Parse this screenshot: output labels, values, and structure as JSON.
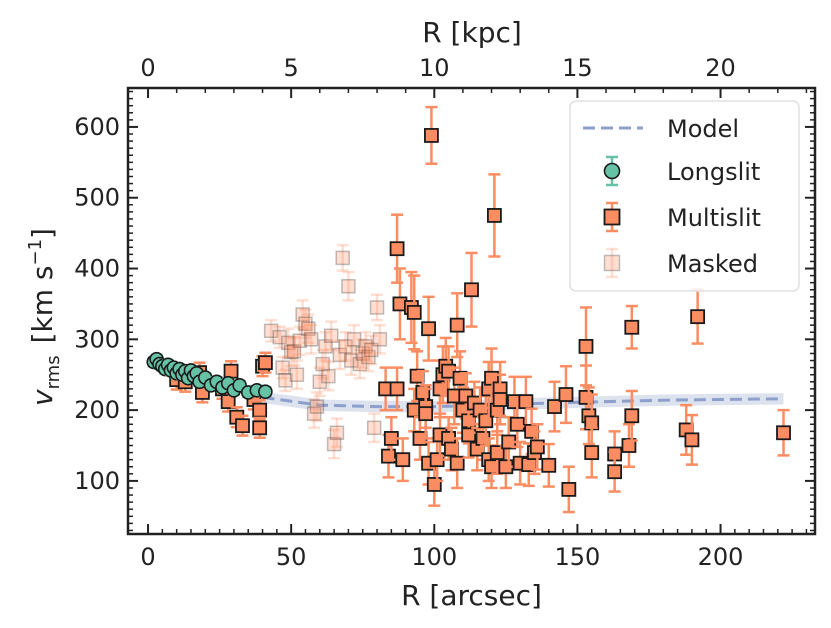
{
  "chart_data": {
    "type": "scatter",
    "xlabel": "R  [arcsec]",
    "x2label": "R  [kpc]",
    "ylabel_main": "v",
    "ylabel_sub": "rms",
    "ylabel_units": "[km s",
    "ylabel_exp": "−1",
    "ylabel_close": "]",
    "xlim": [
      -7,
      233
    ],
    "ylim": [
      25,
      655
    ],
    "x2_per_x": 0.1,
    "xticks": [
      0,
      50,
      100,
      150,
      200
    ],
    "xtick_labels": [
      "0",
      "50",
      "100",
      "150",
      "200"
    ],
    "yticks": [
      100,
      200,
      300,
      400,
      500,
      600
    ],
    "ytick_labels": [
      "100",
      "200",
      "300",
      "400",
      "500",
      "600"
    ],
    "x2ticks": [
      0,
      5,
      10,
      15,
      20
    ],
    "x2tick_labels": [
      "0",
      "5",
      "10",
      "15",
      "20"
    ],
    "colors": {
      "model": "#8da0cb",
      "longslit": "#66c2a5",
      "multislit": "#fc8d62",
      "masked": "#f4c7b4"
    },
    "legend": {
      "placement": "top-right",
      "entries": [
        {
          "label": "Model",
          "marker": "dashed-line"
        },
        {
          "label": "Longslit",
          "marker": "circle"
        },
        {
          "label": "Multislit",
          "marker": "square"
        },
        {
          "label": "Masked",
          "marker": "faded-square"
        }
      ]
    },
    "series": [
      {
        "name": "Model",
        "style": "dashed",
        "x": [
          40,
          60,
          80,
          100,
          120,
          140,
          160,
          180,
          200,
          222
        ],
        "y": [
          218,
          207,
          205,
          205,
          207,
          210,
          212,
          214,
          215,
          216
        ],
        "band": 8
      },
      {
        "name": "Longslit",
        "marker": "circle",
        "points": [
          [
            2,
            268,
            6
          ],
          [
            3,
            272,
            6
          ],
          [
            4,
            265,
            6
          ],
          [
            5,
            262,
            6
          ],
          [
            6,
            258,
            6
          ],
          [
            7,
            264,
            6
          ],
          [
            8,
            256,
            6
          ],
          [
            9,
            260,
            6
          ],
          [
            10,
            252,
            6
          ],
          [
            11,
            258,
            6
          ],
          [
            12,
            250,
            6
          ],
          [
            13,
            255,
            6
          ],
          [
            14,
            245,
            6
          ],
          [
            15,
            256,
            6
          ],
          [
            16,
            248,
            6
          ],
          [
            17,
            252,
            6
          ],
          [
            18,
            240,
            6
          ],
          [
            20,
            246,
            6
          ],
          [
            22,
            235,
            6
          ],
          [
            24,
            240,
            6
          ],
          [
            26,
            232,
            6
          ],
          [
            28,
            238,
            6
          ],
          [
            30,
            228,
            6
          ],
          [
            32,
            235,
            6
          ],
          [
            35,
            225,
            6
          ],
          [
            38,
            228,
            6
          ],
          [
            41,
            226,
            6
          ]
        ]
      },
      {
        "name": "Multislit",
        "marker": "square",
        "points": [
          [
            10,
            243,
            14
          ],
          [
            13,
            240,
            14
          ],
          [
            18,
            253,
            14
          ],
          [
            19,
            225,
            14
          ],
          [
            26,
            230,
            14
          ],
          [
            28,
            212,
            14
          ],
          [
            29,
            255,
            14
          ],
          [
            31,
            190,
            14
          ],
          [
            33,
            178,
            14
          ],
          [
            37,
            215,
            14
          ],
          [
            39,
            200,
            14
          ],
          [
            39,
            175,
            14
          ],
          [
            40,
            262,
            14
          ],
          [
            41,
            267,
            14
          ],
          [
            83,
            230,
            30
          ],
          [
            84,
            135,
            30
          ],
          [
            85,
            160,
            30
          ],
          [
            87,
            428,
            48
          ],
          [
            87,
            230,
            30
          ],
          [
            88,
            350,
            50
          ],
          [
            89,
            130,
            30
          ],
          [
            92,
            345,
            50
          ],
          [
            93,
            338,
            52
          ],
          [
            93,
            200,
            30
          ],
          [
            94,
            248,
            35
          ],
          [
            95,
            160,
            30
          ],
          [
            96,
            225,
            30
          ],
          [
            97,
            205,
            30
          ],
          [
            97,
            195,
            35
          ],
          [
            98,
            125,
            30
          ],
          [
            98,
            315,
            45
          ],
          [
            99,
            588,
            40
          ],
          [
            100,
            95,
            30
          ],
          [
            101,
            130,
            30
          ],
          [
            102,
            165,
            30
          ],
          [
            102,
            230,
            40
          ],
          [
            103,
            250,
            40
          ],
          [
            104,
            262,
            40
          ],
          [
            105,
            255,
            35
          ],
          [
            105,
            160,
            30
          ],
          [
            106,
            145,
            30
          ],
          [
            107,
            220,
            40
          ],
          [
            108,
            125,
            35
          ],
          [
            108,
            320,
            45
          ],
          [
            109,
            245,
            38
          ],
          [
            110,
            200,
            32
          ],
          [
            111,
            220,
            32
          ],
          [
            112,
            185,
            32
          ],
          [
            112,
            165,
            32
          ],
          [
            113,
            370,
            52
          ],
          [
            114,
            210,
            30
          ],
          [
            115,
            145,
            30
          ],
          [
            116,
            200,
            32
          ],
          [
            117,
            160,
            30
          ],
          [
            118,
            185,
            35
          ],
          [
            119,
            130,
            30
          ],
          [
            119,
            230,
            38
          ],
          [
            120,
            245,
            42
          ],
          [
            120,
            120,
            30
          ],
          [
            121,
            475,
            58
          ],
          [
            122,
            200,
            35
          ],
          [
            122,
            140,
            30
          ],
          [
            123,
            230,
            38
          ],
          [
            123,
            215,
            35
          ],
          [
            125,
            120,
            30
          ],
          [
            126,
            155,
            35
          ],
          [
            128,
            212,
            35
          ],
          [
            129,
            180,
            32
          ],
          [
            130,
            125,
            30
          ],
          [
            132,
            212,
            35
          ],
          [
            133,
            123,
            30
          ],
          [
            134,
            170,
            32
          ],
          [
            135,
            140,
            30
          ],
          [
            136,
            148,
            32
          ],
          [
            140,
            122,
            30
          ],
          [
            142,
            205,
            35
          ],
          [
            146,
            222,
            40
          ],
          [
            147,
            88,
            32
          ],
          [
            153,
            290,
            55
          ],
          [
            153,
            218,
            45
          ],
          [
            154,
            192,
            40
          ],
          [
            155,
            182,
            40
          ],
          [
            155,
            140,
            35
          ],
          [
            163,
            138,
            32
          ],
          [
            163,
            113,
            28
          ],
          [
            168,
            150,
            30
          ],
          [
            169,
            192,
            35
          ],
          [
            169,
            317,
            30
          ],
          [
            188,
            172,
            35
          ],
          [
            190,
            158,
            35
          ],
          [
            192,
            332,
            38
          ],
          [
            222,
            168,
            32
          ]
        ]
      },
      {
        "name": "Masked",
        "marker": "faded-square",
        "points": [
          [
            43,
            312,
            15
          ],
          [
            46,
            303,
            15
          ],
          [
            47,
            260,
            15
          ],
          [
            48,
            242,
            15
          ],
          [
            49,
            295,
            20
          ],
          [
            50,
            282,
            20
          ],
          [
            51,
            283,
            20
          ],
          [
            52,
            250,
            20
          ],
          [
            53,
            298,
            20
          ],
          [
            54,
            335,
            20
          ],
          [
            55,
            322,
            20
          ],
          [
            56,
            315,
            20
          ],
          [
            57,
            300,
            20
          ],
          [
            58,
            195,
            20
          ],
          [
            59,
            205,
            20
          ],
          [
            60,
            240,
            20
          ],
          [
            61,
            265,
            20
          ],
          [
            62,
            290,
            20
          ],
          [
            63,
            248,
            20
          ],
          [
            64,
            305,
            20
          ],
          [
            65,
            152,
            20
          ],
          [
            66,
            168,
            20
          ],
          [
            67,
            278,
            20
          ],
          [
            68,
            415,
            18
          ],
          [
            69,
            290,
            20
          ],
          [
            70,
            375,
            20
          ],
          [
            71,
            270,
            20
          ],
          [
            72,
            300,
            20
          ],
          [
            74,
            265,
            20
          ],
          [
            75,
            280,
            20
          ],
          [
            76,
            290,
            20
          ],
          [
            77,
            275,
            20
          ],
          [
            78,
            285,
            20
          ],
          [
            79,
            175,
            20
          ],
          [
            80,
            345,
            18
          ],
          [
            81,
            300,
            20
          ]
        ]
      }
    ]
  }
}
